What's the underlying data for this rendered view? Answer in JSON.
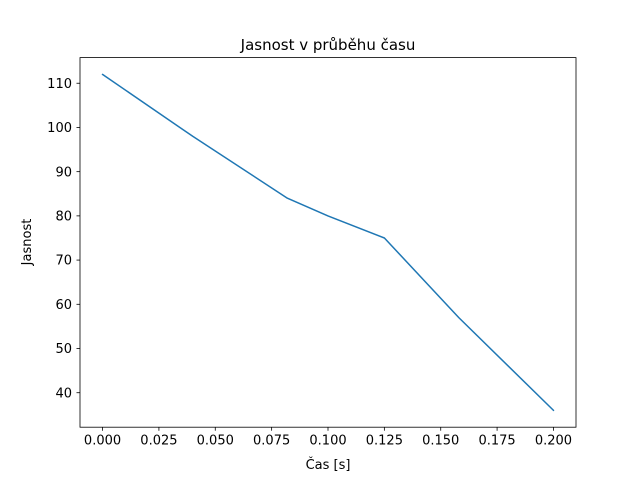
{
  "chart_data": {
    "type": "line",
    "title": "Jasnost v průběhu času",
    "xlabel": "Čas [s]",
    "ylabel": "Jasnost",
    "x": [
      0.0,
      0.04,
      0.082,
      0.1,
      0.125,
      0.158,
      0.2
    ],
    "y": [
      112,
      98,
      84,
      80,
      75,
      57,
      36
    ],
    "xlim": [
      -0.01,
      0.21
    ],
    "ylim": [
      32.2,
      115.8
    ],
    "xticks": [
      0.0,
      0.025,
      0.05,
      0.075,
      0.1,
      0.125,
      0.15,
      0.175,
      0.2
    ],
    "xtick_labels": [
      "0.000",
      "0.025",
      "0.050",
      "0.075",
      "0.100",
      "0.125",
      "0.150",
      "0.175",
      "0.200"
    ],
    "yticks": [
      40,
      50,
      60,
      70,
      80,
      90,
      100,
      110
    ],
    "ytick_labels": [
      "40",
      "50",
      "60",
      "70",
      "80",
      "90",
      "100",
      "110"
    ],
    "line_color": "#1f77b4",
    "axis_color": "#000000",
    "background": "#ffffff",
    "grid": false,
    "legend": "none"
  }
}
